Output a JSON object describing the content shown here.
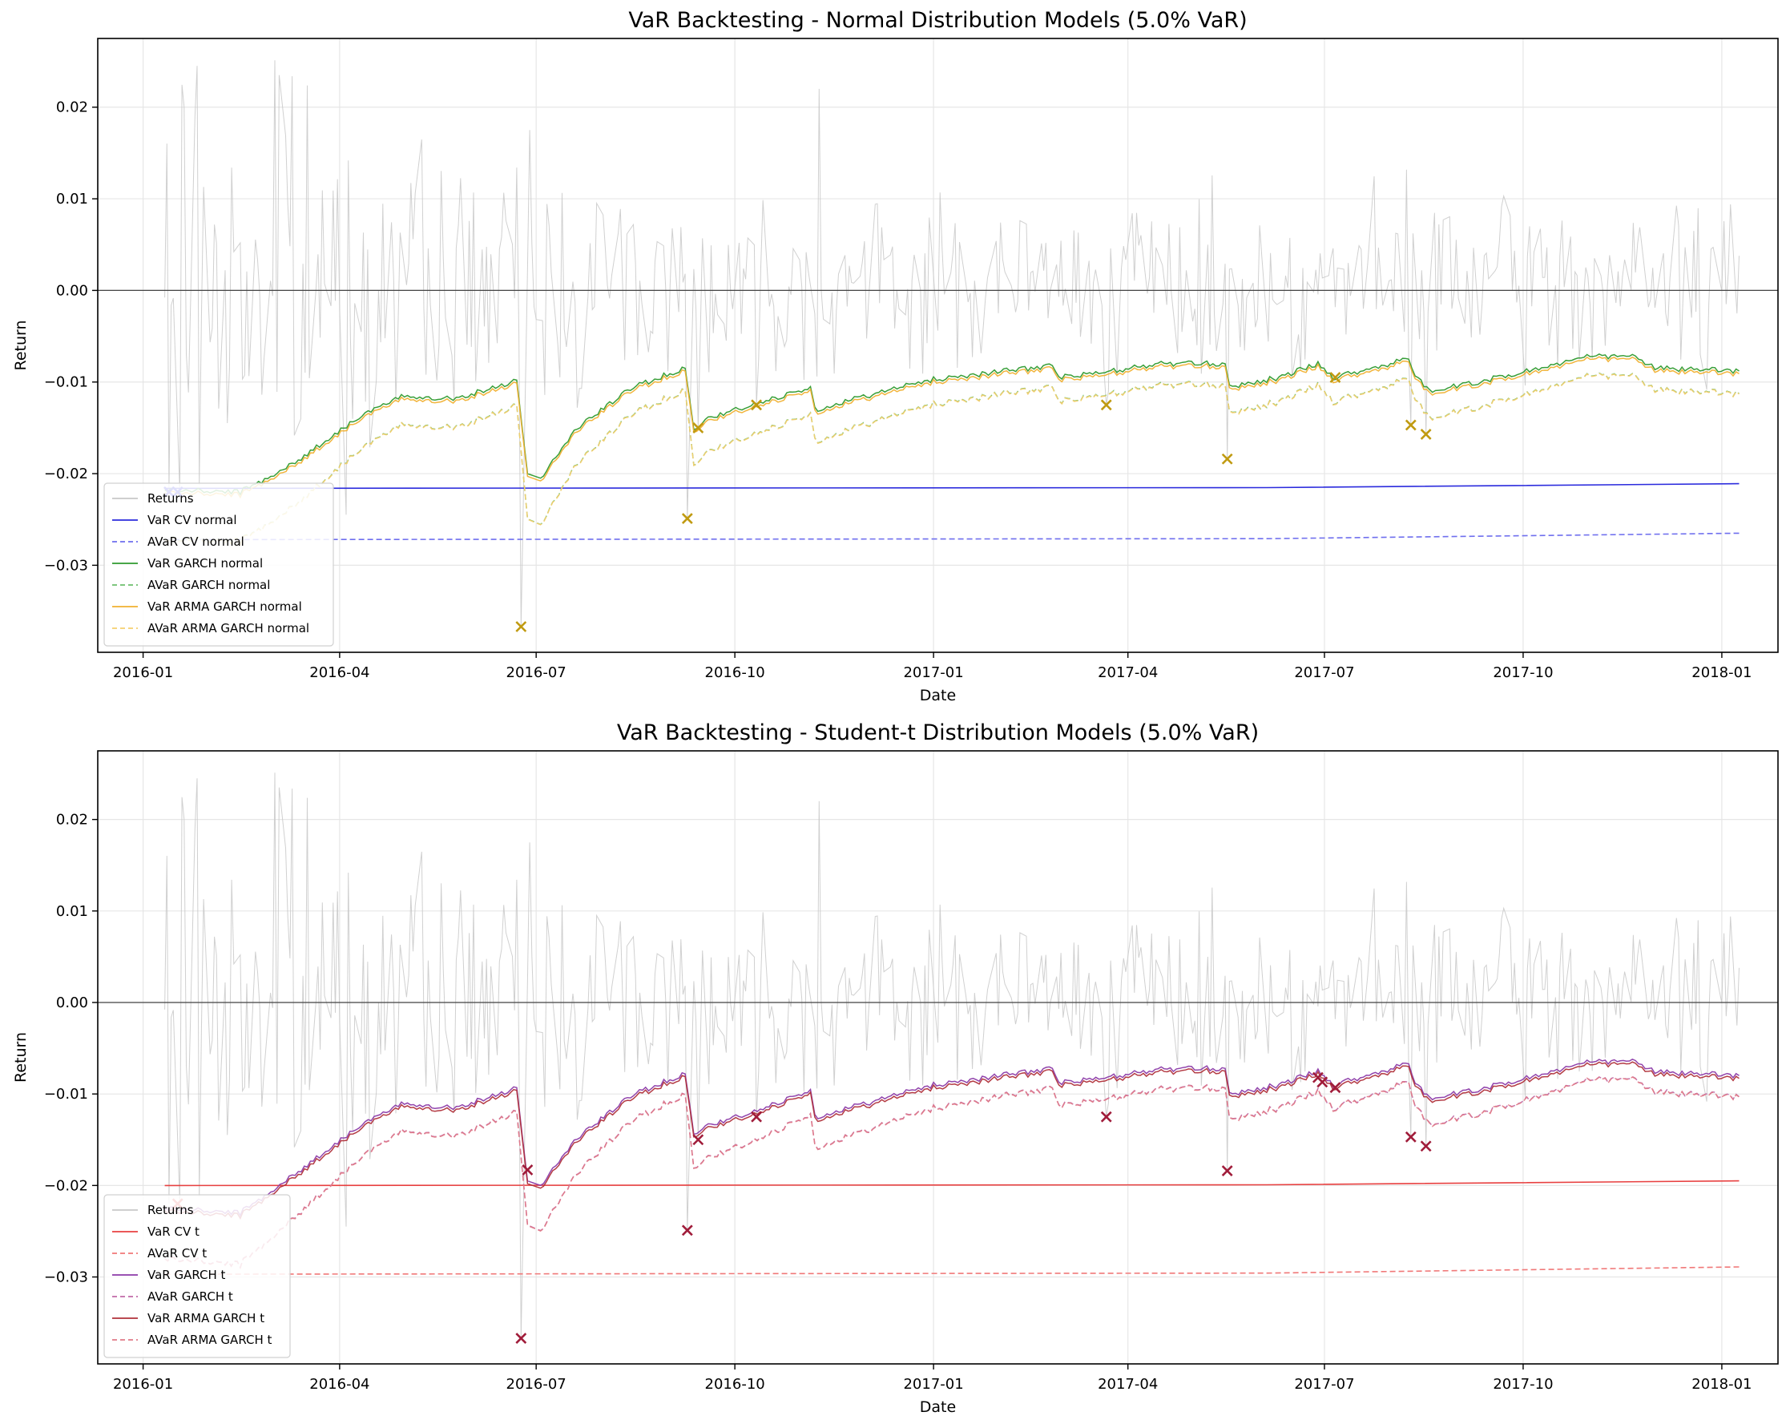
{
  "chart_data": [
    {
      "type": "line",
      "title": "VaR Backtesting - Normal Distribution Models (5.0% VaR)",
      "xlabel": "Date",
      "ylabel": "Return",
      "x_ticks": [
        "2016-01",
        "2016-04",
        "2016-07",
        "2016-10",
        "2017-01",
        "2017-04",
        "2017-07",
        "2017-10",
        "2018-01"
      ],
      "y_ticks": [
        "−0.03",
        "−0.02",
        "−0.01",
        "0.00",
        "0.01",
        "0.02"
      ],
      "xlim": [
        "2015-12-11",
        "2018-01-27"
      ],
      "ylim": [
        -0.0395,
        0.0275
      ],
      "x_range": [
        "2016-01-11",
        "2018-01-09"
      ],
      "grid": true,
      "zero_line": true,
      "legend_position": "lower-left",
      "series": [
        {
          "name": "Returns",
          "style": "solid",
          "color": "#c8c8c8",
          "kind": "returns"
        },
        {
          "name": "VaR CV normal",
          "style": "solid",
          "color": "#2b2bdd",
          "start": -0.0216,
          "end": -0.0211
        },
        {
          "name": "AVaR CV normal",
          "style": "dashed",
          "color": "#6f6fee",
          "start": -0.0272,
          "end": -0.0265
        },
        {
          "name": "VaR GARCH normal",
          "style": "solid",
          "color": "#2e9a2e"
        },
        {
          "name": "AVaR GARCH normal",
          "style": "dashed",
          "color": "#6cbf6c"
        },
        {
          "name": "VaR ARMA GARCH normal",
          "style": "solid",
          "color": "#f0b030"
        },
        {
          "name": "AVaR ARMA GARCH normal",
          "style": "dashed",
          "color": "#f5cf6e"
        }
      ],
      "garch_path": [
        [
          "2016-01-11",
          -0.0218
        ],
        [
          "2016-02-15",
          -0.022
        ],
        [
          "2016-03-10",
          -0.019
        ],
        [
          "2016-04-10",
          -0.0138
        ],
        [
          "2016-05-01",
          -0.0115
        ],
        [
          "2016-05-25",
          -0.0118
        ],
        [
          "2016-06-22",
          -0.0098
        ],
        [
          "2016-06-27",
          -0.02
        ],
        [
          "2016-07-03",
          -0.0205
        ],
        [
          "2016-07-20",
          -0.015
        ],
        [
          "2016-08-15",
          -0.0105
        ],
        [
          "2016-09-08",
          -0.0085
        ],
        [
          "2016-09-12",
          -0.015
        ],
        [
          "2016-09-20",
          -0.0138
        ],
        [
          "2016-10-10",
          -0.0125
        ],
        [
          "2016-11-05",
          -0.0105
        ],
        [
          "2016-11-07",
          -0.013
        ],
        [
          "2016-12-01",
          -0.0115
        ],
        [
          "2017-01-01",
          -0.0097
        ],
        [
          "2017-02-25",
          -0.0082
        ],
        [
          "2017-02-28",
          -0.0095
        ],
        [
          "2017-03-20",
          -0.009
        ],
        [
          "2017-04-15",
          -0.008
        ],
        [
          "2017-05-16",
          -0.008
        ],
        [
          "2017-05-18",
          -0.0105
        ],
        [
          "2017-06-10",
          -0.0095
        ],
        [
          "2017-06-28",
          -0.008
        ],
        [
          "2017-07-05",
          -0.0095
        ],
        [
          "2017-08-09",
          -0.0075
        ],
        [
          "2017-08-12",
          -0.0095
        ],
        [
          "2017-08-20",
          -0.011
        ],
        [
          "2017-09-20",
          -0.0095
        ],
        [
          "2017-11-01",
          -0.0072
        ],
        [
          "2017-11-22",
          -0.0072
        ],
        [
          "2017-12-01",
          -0.0085
        ],
        [
          "2018-01-09",
          -0.0088
        ]
      ],
      "violations": [
        {
          "date": "2016-01-13",
          "value": -0.022,
          "color": "#2b2bdd"
        },
        {
          "date": "2016-01-17",
          "value": -0.022,
          "color": "#2b2bdd"
        },
        {
          "date": "2016-06-24",
          "value": -0.0367,
          "color": "#c09a10"
        },
        {
          "date": "2016-09-09",
          "value": -0.0249,
          "color": "#c09a10"
        },
        {
          "date": "2016-09-14",
          "value": -0.015,
          "color": "#c09a10"
        },
        {
          "date": "2016-10-11",
          "value": -0.0125,
          "color": "#c09a10"
        },
        {
          "date": "2017-03-22",
          "value": -0.0125,
          "color": "#c09a10"
        },
        {
          "date": "2017-05-17",
          "value": -0.0184,
          "color": "#c09a10"
        },
        {
          "date": "2017-07-06",
          "value": -0.0095,
          "color": "#c09a10"
        },
        {
          "date": "2017-08-10",
          "value": -0.0147,
          "color": "#c09a10"
        },
        {
          "date": "2017-08-17",
          "value": -0.0157,
          "color": "#c09a10"
        }
      ]
    },
    {
      "type": "line",
      "title": "VaR Backtesting - Student-t Distribution Models (5.0% VaR)",
      "xlabel": "Date",
      "ylabel": "Return",
      "x_ticks": [
        "2016-01",
        "2016-04",
        "2016-07",
        "2016-10",
        "2017-01",
        "2017-04",
        "2017-07",
        "2017-10",
        "2018-01"
      ],
      "y_ticks": [
        "−0.03",
        "−0.02",
        "−0.01",
        "0.00",
        "0.01",
        "0.02"
      ],
      "xlim": [
        "2015-12-11",
        "2018-01-27"
      ],
      "ylim": [
        -0.0395,
        0.0275
      ],
      "x_range": [
        "2016-01-11",
        "2018-01-09"
      ],
      "grid": true,
      "zero_line": true,
      "legend_position": "lower-left",
      "series": [
        {
          "name": "Returns",
          "style": "solid",
          "color": "#c8c8c8",
          "kind": "returns"
        },
        {
          "name": "VaR CV t",
          "style": "solid",
          "color": "#e84040",
          "start": -0.02,
          "end": -0.0195
        },
        {
          "name": "AVaR CV t",
          "style": "dashed",
          "color": "#f07878",
          "start": -0.0297,
          "end": -0.0289
        },
        {
          "name": "VaR GARCH t",
          "style": "solid",
          "color": "#8b3aa8"
        },
        {
          "name": "AVaR GARCH t",
          "style": "dashed",
          "color": "#c06aa8"
        },
        {
          "name": "VaR ARMA GARCH t",
          "style": "solid",
          "color": "#b0303a"
        },
        {
          "name": "AVaR ARMA GARCH t",
          "style": "dashed",
          "color": "#e07a88"
        }
      ],
      "garch_path": [
        [
          "2016-01-11",
          -0.0225
        ],
        [
          "2016-02-15",
          -0.023
        ],
        [
          "2016-03-10",
          -0.019
        ],
        [
          "2016-04-10",
          -0.0135
        ],
        [
          "2016-05-01",
          -0.011
        ],
        [
          "2016-05-25",
          -0.0115
        ],
        [
          "2016-06-22",
          -0.0093
        ],
        [
          "2016-06-27",
          -0.0195
        ],
        [
          "2016-07-03",
          -0.02
        ],
        [
          "2016-07-20",
          -0.0148
        ],
        [
          "2016-08-15",
          -0.01
        ],
        [
          "2016-09-08",
          -0.0078
        ],
        [
          "2016-09-12",
          -0.0142
        ],
        [
          "2016-09-20",
          -0.0133
        ],
        [
          "2016-10-10",
          -0.012
        ],
        [
          "2016-11-05",
          -0.0095
        ],
        [
          "2016-11-07",
          -0.0125
        ],
        [
          "2016-12-01",
          -0.011
        ],
        [
          "2017-01-01",
          -0.009
        ],
        [
          "2017-02-25",
          -0.0072
        ],
        [
          "2017-02-28",
          -0.0088
        ],
        [
          "2017-03-20",
          -0.0083
        ],
        [
          "2017-04-15",
          -0.0073
        ],
        [
          "2017-05-16",
          -0.0072
        ],
        [
          "2017-05-18",
          -0.01
        ],
        [
          "2017-06-10",
          -0.009
        ],
        [
          "2017-06-28",
          -0.0075
        ],
        [
          "2017-07-05",
          -0.009
        ],
        [
          "2017-08-09",
          -0.0067
        ],
        [
          "2017-08-12",
          -0.009
        ],
        [
          "2017-08-20",
          -0.0105
        ],
        [
          "2017-09-20",
          -0.009
        ],
        [
          "2017-11-01",
          -0.0065
        ],
        [
          "2017-11-22",
          -0.0064
        ],
        [
          "2017-12-01",
          -0.0076
        ],
        [
          "2018-01-09",
          -0.008
        ]
      ],
      "violations": [
        {
          "date": "2016-01-17",
          "value": -0.022,
          "color": "#e84040"
        },
        {
          "date": "2016-06-24",
          "value": -0.0367,
          "color": "#a01c3a"
        },
        {
          "date": "2016-06-27",
          "value": -0.0183,
          "color": "#a01c3a"
        },
        {
          "date": "2016-09-09",
          "value": -0.0249,
          "color": "#a01c3a"
        },
        {
          "date": "2016-09-14",
          "value": -0.015,
          "color": "#a01c3a"
        },
        {
          "date": "2016-10-11",
          "value": -0.0125,
          "color": "#a01c3a"
        },
        {
          "date": "2017-03-22",
          "value": -0.0125,
          "color": "#a01c3a"
        },
        {
          "date": "2017-05-17",
          "value": -0.0184,
          "color": "#a01c3a"
        },
        {
          "date": "2017-06-28",
          "value": -0.0082,
          "color": "#a01c3a"
        },
        {
          "date": "2017-06-30",
          "value": -0.0087,
          "color": "#a01c3a"
        },
        {
          "date": "2017-07-06",
          "value": -0.0093,
          "color": "#a01c3a"
        },
        {
          "date": "2017-08-10",
          "value": -0.0147,
          "color": "#a01c3a"
        },
        {
          "date": "2017-08-17",
          "value": -0.0157,
          "color": "#a01c3a"
        }
      ]
    }
  ]
}
